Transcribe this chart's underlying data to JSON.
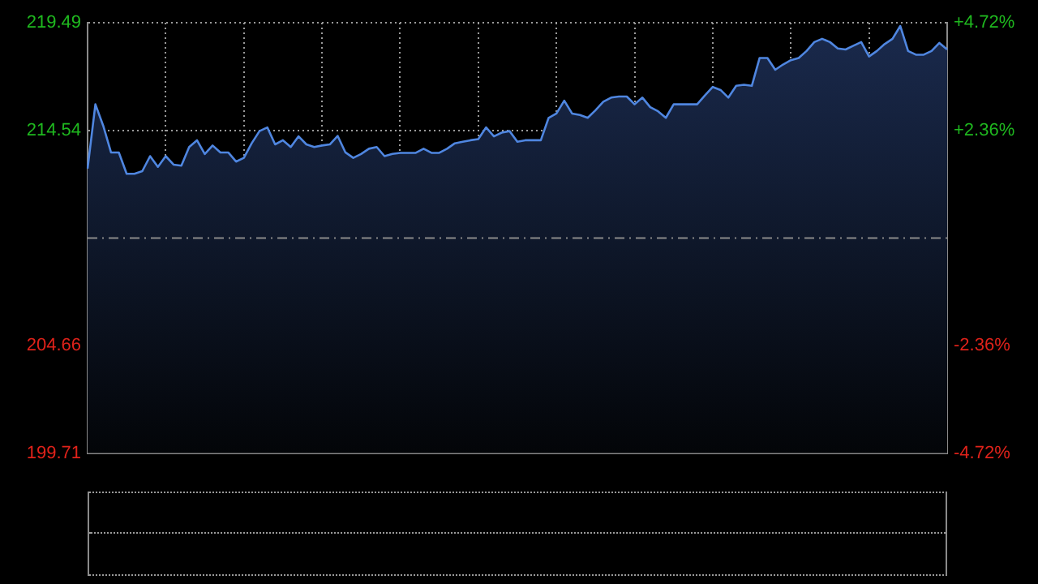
{
  "chart_data": {
    "type": "area",
    "categories": [
      null,
      null,
      null,
      null,
      null,
      null,
      null,
      null,
      null,
      null,
      null,
      null,
      null,
      null,
      null,
      null,
      null,
      null,
      null,
      null,
      null,
      null,
      null,
      null,
      null,
      null,
      null,
      null,
      null,
      null,
      null,
      null,
      null,
      null,
      null,
      null,
      null,
      null,
      null,
      null,
      null,
      null,
      null,
      null,
      null,
      null,
      null,
      null,
      null,
      null,
      null,
      null,
      null,
      null,
      null,
      null,
      null,
      null,
      null,
      null,
      null,
      null,
      null,
      null,
      null,
      null,
      null,
      null,
      null,
      null,
      null,
      null,
      null,
      null,
      null,
      null,
      null,
      null,
      null,
      null,
      null,
      null,
      null,
      null,
      null,
      null,
      null,
      null,
      null,
      null,
      null,
      null,
      null,
      null,
      null,
      null,
      null,
      null,
      null,
      null,
      null,
      null,
      null,
      null,
      null,
      null,
      null,
      null,
      null,
      null,
      null
    ],
    "series": [
      {
        "color": "#4f86e0",
        "values": [
          212.79,
          215.74,
          214.76,
          213.53,
          213.53,
          212.55,
          212.55,
          212.67,
          213.36,
          212.87,
          213.36,
          212.97,
          212.92,
          213.78,
          214.09,
          213.46,
          213.85,
          213.53,
          213.53,
          213.11,
          213.28,
          213.95,
          214.51,
          214.68,
          213.9,
          214.09,
          213.78,
          214.27,
          213.9,
          213.78,
          213.85,
          213.9,
          214.29,
          213.53,
          213.28,
          213.46,
          213.7,
          213.78,
          213.36,
          213.46,
          213.51,
          213.51,
          213.51,
          213.7,
          213.51,
          213.51,
          213.7,
          213.95,
          214.02,
          214.09,
          214.14,
          214.68,
          214.27,
          214.44,
          214.51,
          214.02,
          214.09,
          214.09,
          214.09,
          215.12,
          215.32,
          215.91,
          215.32,
          215.25,
          215.12,
          215.47,
          215.86,
          216.05,
          216.1,
          216.1,
          215.74,
          216.05,
          215.61,
          215.42,
          215.12,
          215.74,
          215.74,
          215.74,
          215.74,
          216.15,
          216.54,
          216.4,
          216.05,
          216.59,
          216.64,
          216.59,
          217.87,
          217.87,
          217.33,
          217.57,
          217.77,
          217.87,
          218.19,
          218.6,
          218.75,
          218.6,
          218.31,
          218.26,
          218.43,
          218.6,
          217.94,
          218.19,
          218.51,
          218.75,
          219.34,
          218.19,
          218.02,
          218.02,
          218.19,
          218.56,
          218.26
        ]
      }
    ],
    "ylim": [
      199.71,
      219.49
    ],
    "yticks": [
      199.71,
      204.66,
      214.54,
      219.49
    ],
    "y2lim": [
      -4.72,
      4.72
    ],
    "y2ticks": [
      {
        "value": -4.72,
        "label": "-4.72%"
      },
      {
        "value": -2.36,
        "label": "-2.36%"
      },
      {
        "value": 2.36,
        "label": "+2.36%"
      },
      {
        "value": 4.72,
        "label": "+4.72%"
      }
    ],
    "ref_lines": [
      {
        "axis": "y",
        "value": 209.6,
        "color": "#8a8a8a",
        "line_style": "dashdot"
      }
    ],
    "grid": true,
    "tick_labels": "y",
    "marker": "none",
    "line_style": "solid"
  }
}
